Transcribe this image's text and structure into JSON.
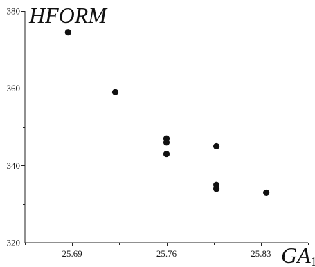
{
  "chart_data": {
    "type": "scatter",
    "title": "",
    "xlabel": "GA",
    "xlabel_subscript": "1",
    "ylabel": "HFORM",
    "xlim": [
      25.655,
      25.865
    ],
    "ylim": [
      320,
      380
    ],
    "x_ticks": [
      25.69,
      25.76,
      25.83
    ],
    "x_tick_labels": [
      "25.69",
      "25.76",
      "25.83"
    ],
    "y_ticks": [
      320,
      340,
      360,
      380
    ],
    "y_tick_labels": [
      "320",
      "340",
      "360",
      "380"
    ],
    "grid": false,
    "legend": "none",
    "point_color": "#111111",
    "points": [
      {
        "x": 25.687,
        "y": 374.5
      },
      {
        "x": 25.722,
        "y": 359.0
      },
      {
        "x": 25.76,
        "y": 347.0
      },
      {
        "x": 25.76,
        "y": 346.0
      },
      {
        "x": 25.76,
        "y": 343.0
      },
      {
        "x": 25.797,
        "y": 345.0
      },
      {
        "x": 25.797,
        "y": 335.0
      },
      {
        "x": 25.797,
        "y": 334.0
      },
      {
        "x": 25.834,
        "y": 333.0
      }
    ]
  }
}
